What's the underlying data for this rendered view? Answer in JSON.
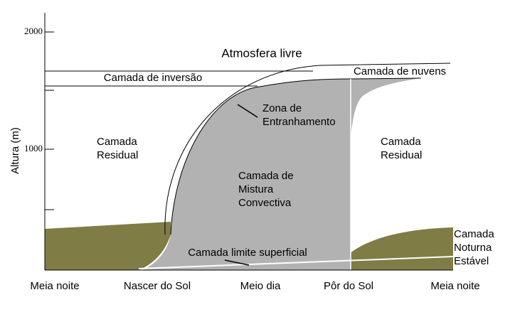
{
  "axis": {
    "label": "Altura (m)",
    "ticks": [
      "2000",
      "1000"
    ]
  },
  "time_labels": [
    "Meia noite",
    "Nascer do Sol",
    "Meio dia",
    "Pôr do Sol",
    "Meia noite"
  ],
  "regions": {
    "free_atmosphere": "Atmosfera livre",
    "inversion_layer": "Camada de inversão",
    "cloud_layer": "Camada de nuvens",
    "entrainment_zone": [
      "Zona de",
      "Entranhamento"
    ],
    "residual_left": [
      "Camada",
      "Residual"
    ],
    "mixed_layer": [
      "Camada de",
      "Mistura",
      "Convectiva"
    ],
    "residual_right": [
      "Camada",
      "Residual"
    ],
    "stable_layer": [
      "Camada",
      "Noturna",
      "Estável"
    ],
    "surface_layer": "Camada limite superficial"
  }
}
